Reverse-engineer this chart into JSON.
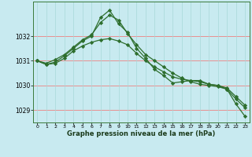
{
  "title": "Graphe pression niveau de la mer (hPa)",
  "bg_color": "#c8eaf0",
  "grid_color_h": "#e89090",
  "grid_color_v": "#a8d8d8",
  "line_color": "#2d6e2d",
  "xlim": [
    -0.5,
    23.5
  ],
  "ylim": [
    1028.5,
    1033.4
  ],
  "yticks": [
    1029,
    1030,
    1031,
    1032
  ],
  "xticks": [
    0,
    1,
    2,
    3,
    4,
    5,
    6,
    7,
    8,
    9,
    10,
    11,
    12,
    13,
    14,
    15,
    16,
    17,
    18,
    19,
    20,
    21,
    22,
    23
  ],
  "series1_x": [
    0,
    1,
    2,
    3,
    4,
    5,
    6,
    7,
    8,
    9,
    10,
    11,
    12,
    13,
    14,
    15,
    16,
    17,
    18,
    19,
    20,
    21,
    22,
    23
  ],
  "series1_y": [
    1031.0,
    1030.9,
    1031.05,
    1031.25,
    1031.55,
    1031.85,
    1032.05,
    1032.55,
    1032.85,
    1032.65,
    1032.1,
    1031.65,
    1031.25,
    1031.0,
    1030.75,
    1030.5,
    1030.3,
    1030.15,
    1030.05,
    1030.0,
    1029.95,
    1029.85,
    1029.45,
    1029.1
  ],
  "series2_x": [
    0,
    1,
    2,
    3,
    4,
    5,
    6,
    7,
    8,
    9,
    10,
    11,
    12,
    13,
    14,
    15,
    16,
    17,
    18,
    19,
    20,
    21,
    22,
    23
  ],
  "series2_y": [
    1031.0,
    1030.85,
    1030.95,
    1031.2,
    1031.5,
    1031.8,
    1032.0,
    1032.75,
    1033.05,
    1032.5,
    1032.15,
    1031.5,
    1031.1,
    1030.65,
    1030.4,
    1030.1,
    1030.15,
    1030.2,
    1030.2,
    1030.05,
    1030.0,
    1029.85,
    1029.25,
    1028.75
  ],
  "series3_x": [
    0,
    1,
    2,
    3,
    4,
    5,
    6,
    7,
    8,
    9,
    10,
    11,
    12,
    13,
    14,
    15,
    16,
    17,
    18,
    19,
    20,
    21,
    22,
    23
  ],
  "series3_y": [
    1031.0,
    1030.85,
    1030.9,
    1031.1,
    1031.4,
    1031.6,
    1031.75,
    1031.85,
    1031.9,
    1031.8,
    1031.65,
    1031.3,
    1031.0,
    1030.75,
    1030.55,
    1030.35,
    1030.25,
    1030.2,
    1030.15,
    1030.05,
    1030.0,
    1029.9,
    1029.55,
    1029.2
  ]
}
